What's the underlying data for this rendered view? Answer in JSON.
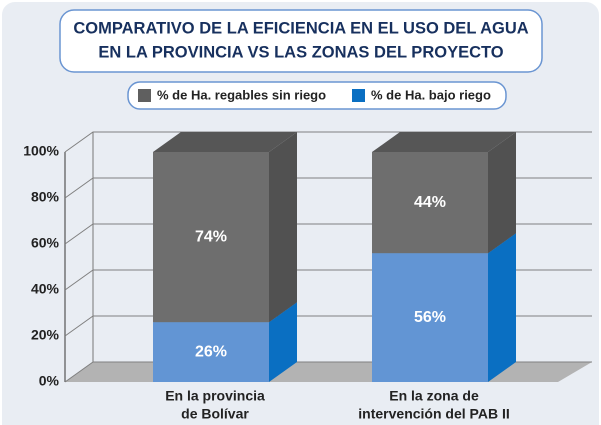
{
  "chart_data": {
    "type": "bar3d_stacked",
    "title": [
      "COMPARATIVO DE LA EFICIENCIA EN EL USO DEL AGUA",
      "EN LA PROVINCIA VS LAS ZONAS DEL PROYECTO"
    ],
    "categories": [
      [
        "En la provincia",
        "de Bolívar"
      ],
      [
        "En la zona de",
        "intervención del PAB II"
      ]
    ],
    "series": [
      {
        "name": "% de Ha. regables sin riego",
        "color": "#5f5f5f",
        "values": [
          74,
          44
        ],
        "value_labels": [
          "74%",
          "44%"
        ]
      },
      {
        "name": "% de Ha. bajo riego",
        "color": "#0a6fc2",
        "values": [
          26,
          56
        ],
        "value_labels": [
          "26%",
          "56%"
        ]
      }
    ],
    "ylim": [
      0,
      100
    ],
    "yticks": [
      {
        "value": 0,
        "label": "0%"
      },
      {
        "value": 20,
        "label": "20%"
      },
      {
        "value": 40,
        "label": "40%"
      },
      {
        "value": 60,
        "label": "60%"
      },
      {
        "value": 80,
        "label": "80%"
      },
      {
        "value": 100,
        "label": "100%"
      }
    ],
    "grid": true
  }
}
